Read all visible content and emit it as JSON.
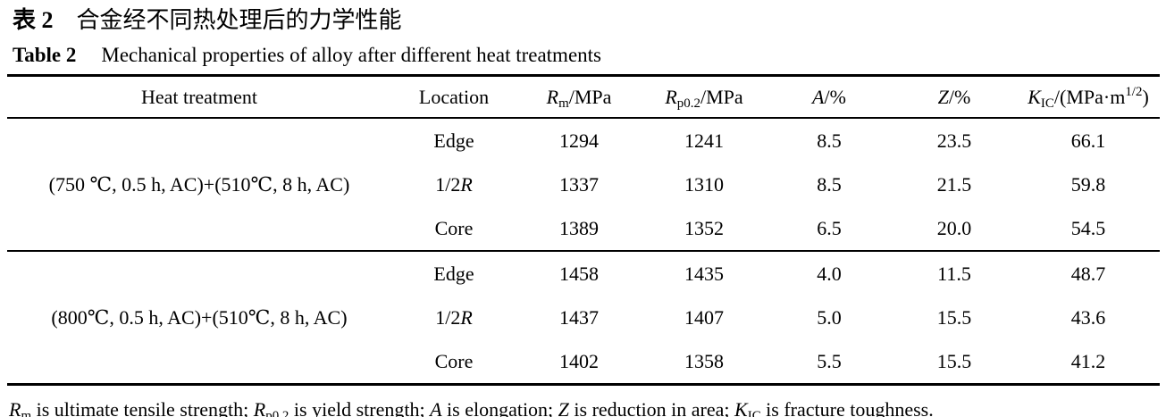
{
  "page": {
    "background": "#ffffff",
    "text_color": "#000000",
    "rule_color": "#000000"
  },
  "caption_zh": {
    "label": "表 2",
    "text": "合金经不同热处理后的力学性能"
  },
  "caption_en": {
    "label": "Table 2",
    "text": "Mechanical properties of alloy after different heat treatments"
  },
  "table": {
    "columns": [
      {
        "id": "heat_treatment",
        "segments": [
          {
            "t": "Heat treatment"
          }
        ]
      },
      {
        "id": "location",
        "segments": [
          {
            "t": "Location"
          }
        ]
      },
      {
        "id": "rm",
        "segments": [
          {
            "t": "R",
            "s": "i"
          },
          {
            "t": "m",
            "s": "sub"
          },
          {
            "t": "/MPa"
          }
        ]
      },
      {
        "id": "rp02",
        "segments": [
          {
            "t": "R",
            "s": "i"
          },
          {
            "t": "p0.2",
            "s": "sub"
          },
          {
            "t": "/MPa"
          }
        ]
      },
      {
        "id": "a",
        "segments": [
          {
            "t": "A",
            "s": "i"
          },
          {
            "t": "/%"
          }
        ]
      },
      {
        "id": "z",
        "segments": [
          {
            "t": "Z",
            "s": "i"
          },
          {
            "t": "/%"
          }
        ]
      },
      {
        "id": "kic",
        "segments": [
          {
            "t": "K",
            "s": "i"
          },
          {
            "t": "IC",
            "s": "sub"
          },
          {
            "t": "/(MPa·m"
          },
          {
            "t": "1/2",
            "s": "sup"
          },
          {
            "t": ")"
          }
        ]
      }
    ],
    "groups": [
      {
        "treatment": "(750 ℃, 0.5 h, AC)+(510℃, 8 h, AC)",
        "rows": [
          {
            "location": [
              {
                "t": "Edge"
              }
            ],
            "rm": "1294",
            "rp02": "1241",
            "a": "8.5",
            "z": "23.5",
            "kic": "66.1"
          },
          {
            "location": [
              {
                "t": "1/2"
              },
              {
                "t": "R",
                "s": "i"
              }
            ],
            "rm": "1337",
            "rp02": "1310",
            "a": "8.5",
            "z": "21.5",
            "kic": "59.8"
          },
          {
            "location": [
              {
                "t": "Core"
              }
            ],
            "rm": "1389",
            "rp02": "1352",
            "a": "6.5",
            "z": "20.0",
            "kic": "54.5"
          }
        ]
      },
      {
        "treatment": "(800℃, 0.5 h, AC)+(510℃, 8 h, AC)",
        "rows": [
          {
            "location": [
              {
                "t": "Edge"
              }
            ],
            "rm": "1458",
            "rp02": "1435",
            "a": "4.0",
            "z": "11.5",
            "kic": "48.7"
          },
          {
            "location": [
              {
                "t": "1/2"
              },
              {
                "t": "R",
                "s": "i"
              }
            ],
            "rm": "1437",
            "rp02": "1407",
            "a": "5.0",
            "z": "15.5",
            "kic": "43.6"
          },
          {
            "location": [
              {
                "t": "Core"
              }
            ],
            "rm": "1402",
            "rp02": "1358",
            "a": "5.5",
            "z": "15.5",
            "kic": "41.2"
          }
        ]
      }
    ]
  },
  "footnote_segments": [
    {
      "t": "R",
      "s": "i"
    },
    {
      "t": "m",
      "s": "sub"
    },
    {
      "t": " is ultimate tensile strength; "
    },
    {
      "t": "R",
      "s": "i"
    },
    {
      "t": "p0.2",
      "s": "sub"
    },
    {
      "t": " is yield strength; "
    },
    {
      "t": "A",
      "s": "i"
    },
    {
      "t": " is elongation; "
    },
    {
      "t": "Z",
      "s": "i"
    },
    {
      "t": " is reduction in area; "
    },
    {
      "t": "K",
      "s": "i"
    },
    {
      "t": "IC",
      "s": "sub"
    },
    {
      "t": " is fracture toughness."
    }
  ]
}
